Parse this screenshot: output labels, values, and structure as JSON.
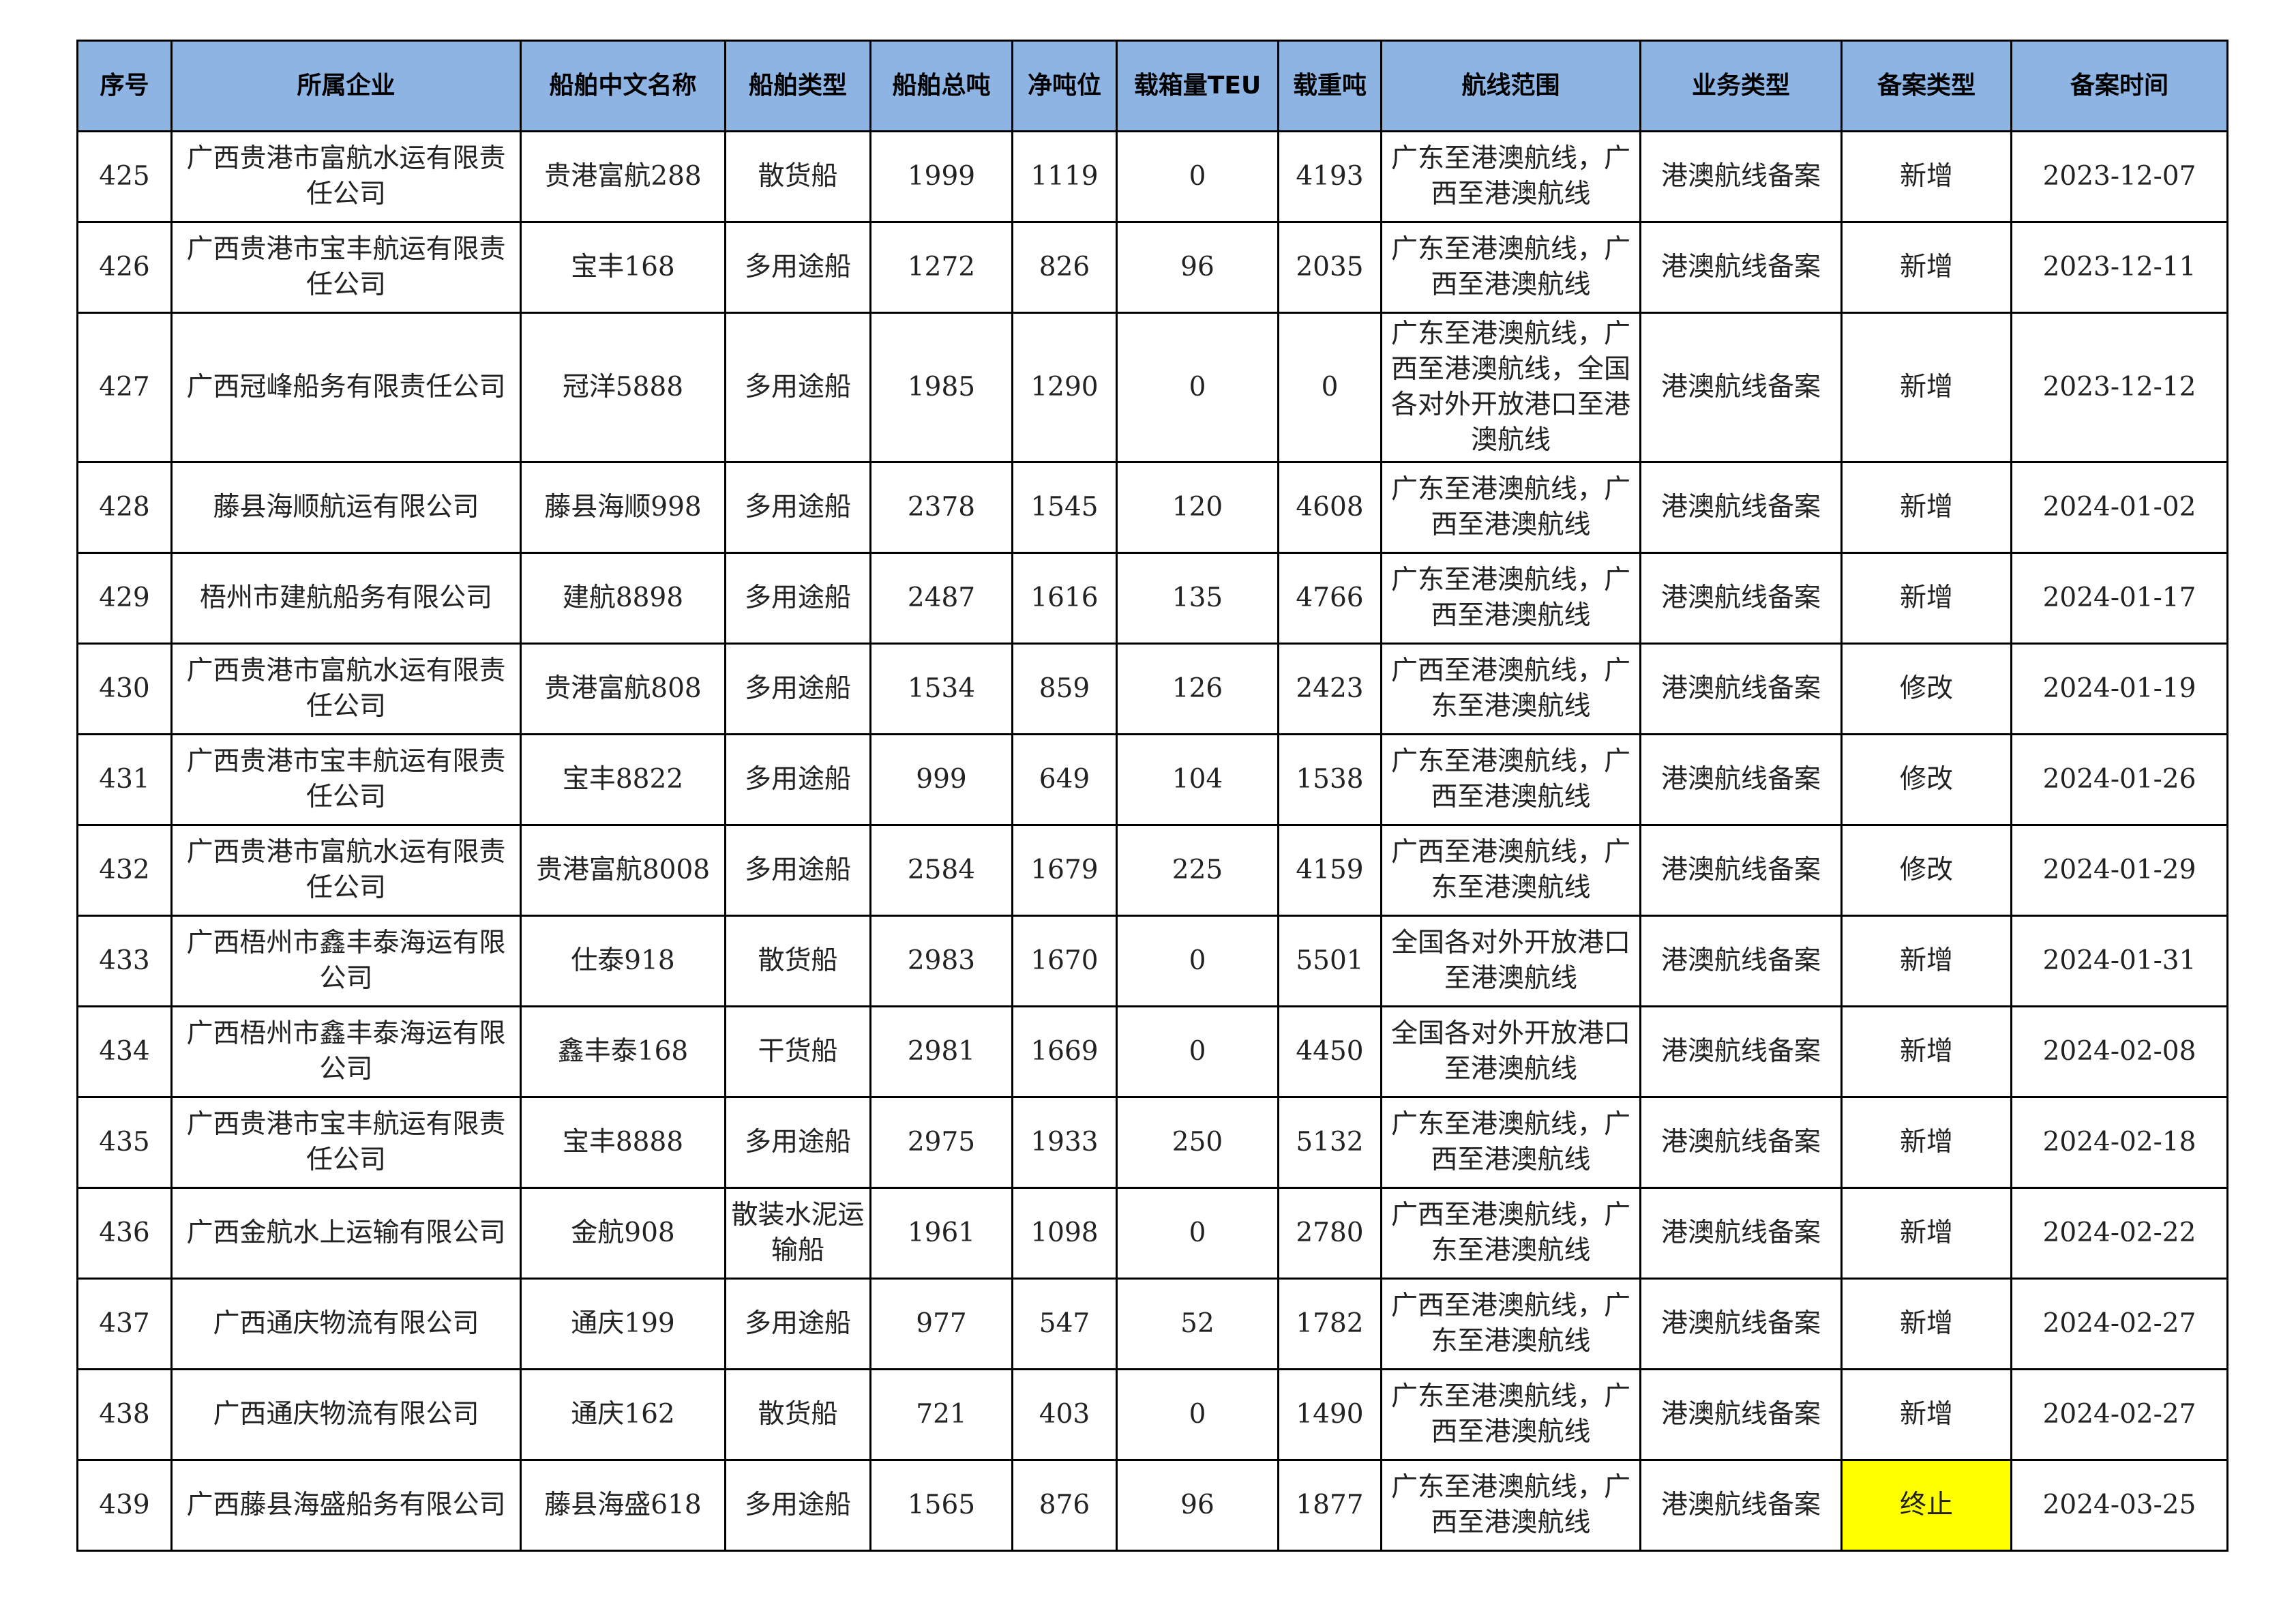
{
  "table": {
    "header": [
      "序号",
      "所属企业",
      "船舶中文名称",
      "船舶类型",
      "船舶总吨",
      "净吨位",
      "载箱量TEU",
      "载重吨",
      "航线范围",
      "业务类型",
      "备案类型",
      "备案时间"
    ],
    "rows": [
      [
        425,
        "广西贵港市富航水运有限责任公司",
        "贵港富航288",
        "散货船",
        1999,
        1119,
        0,
        4193,
        "广东至港澳航线，广西至港澳航线",
        "港澳航线备案",
        "新增",
        "2023-12-07"
      ],
      [
        426,
        "广西贵港市宝丰航运有限责任公司",
        "宝丰168",
        "多用途船",
        1272,
        826,
        96,
        2035,
        "广东至港澳航线，广西至港澳航线",
        "港澳航线备案",
        "新增",
        "2023-12-11"
      ],
      [
        427,
        "广西冠峰船务有限责任公司",
        "冠洋5888",
        "多用途船",
        1985,
        1290,
        0,
        0,
        "广东至港澳航线，广西至港澳航线，全国各对外开放港口至港澳航线",
        "港澳航线备案",
        "新增",
        "2023-12-12"
      ],
      [
        428,
        "藤县海顺航运有限公司",
        "藤县海顺998",
        "多用途船",
        2378,
        1545,
        120,
        4608,
        "广东至港澳航线，广西至港澳航线",
        "港澳航线备案",
        "新增",
        "2024-01-02"
      ],
      [
        429,
        "梧州市建航船务有限公司",
        "建航8898",
        "多用途船",
        2487,
        1616,
        135,
        4766,
        "广东至港澳航线，广西至港澳航线",
        "港澳航线备案",
        "新增",
        "2024-01-17"
      ],
      [
        430,
        "广西贵港市富航水运有限责任公司",
        "贵港富航808",
        "多用途船",
        1534,
        859,
        126,
        2423,
        "广西至港澳航线，广东至港澳航线",
        "港澳航线备案",
        "修改",
        "2024-01-19"
      ],
      [
        431,
        "广西贵港市宝丰航运有限责任公司",
        "宝丰8822",
        "多用途船",
        999,
        649,
        104,
        1538,
        "广东至港澳航线，广西至港澳航线",
        "港澳航线备案",
        "修改",
        "2024-01-26"
      ],
      [
        432,
        "广西贵港市富航水运有限责任公司",
        "贵港富航8008",
        "多用途船",
        2584,
        1679,
        225,
        4159,
        "广西至港澳航线，广东至港澳航线",
        "港澳航线备案",
        "修改",
        "2024-01-29"
      ],
      [
        433,
        "广西梧州市鑫丰泰海运有限公司",
        "仕泰918",
        "散货船",
        2983,
        1670,
        0,
        5501,
        "全国各对外开放港口至港澳航线",
        "港澳航线备案",
        "新增",
        "2024-01-31"
      ],
      [
        434,
        "广西梧州市鑫丰泰海运有限公司",
        "鑫丰泰168",
        "干货船",
        2981,
        1669,
        0,
        4450,
        "全国各对外开放港口至港澳航线",
        "港澳航线备案",
        "新增",
        "2024-02-08"
      ],
      [
        435,
        "广西贵港市宝丰航运有限责任公司",
        "宝丰8888",
        "多用途船",
        2975,
        1933,
        250,
        5132,
        "广东至港澳航线，广西至港澳航线",
        "港澳航线备案",
        "新增",
        "2024-02-18"
      ],
      [
        436,
        "广西金航水上运输有限公司",
        "金航908",
        "散装水泥运输船",
        1961,
        1098,
        0,
        2780,
        "广西至港澳航线，广东至港澳航线",
        "港澳航线备案",
        "新增",
        "2024-02-22"
      ],
      [
        437,
        "广西通庆物流有限公司",
        "通庆199",
        "多用途船",
        977,
        547,
        52,
        1782,
        "广西至港澳航线，广东至港澳航线",
        "港澳航线备案",
        "新增",
        "2024-02-27"
      ],
      [
        438,
        "广西通庆物流有限公司",
        "通庆162",
        "散货船",
        721,
        403,
        0,
        1490,
        "广东至港澳航线，广西至港澳航线",
        "港澳航线备案",
        "新增",
        "2024-02-27"
      ],
      [
        439,
        "广西藤县海盛船务有限公司",
        "藤县海盛618",
        "多用途船",
        1565,
        876,
        96,
        1877,
        "广东至港澳航线，广西至港澳航线",
        "港澳航线备案",
        "终止",
        "2024-03-25"
      ]
    ]
  }
}
